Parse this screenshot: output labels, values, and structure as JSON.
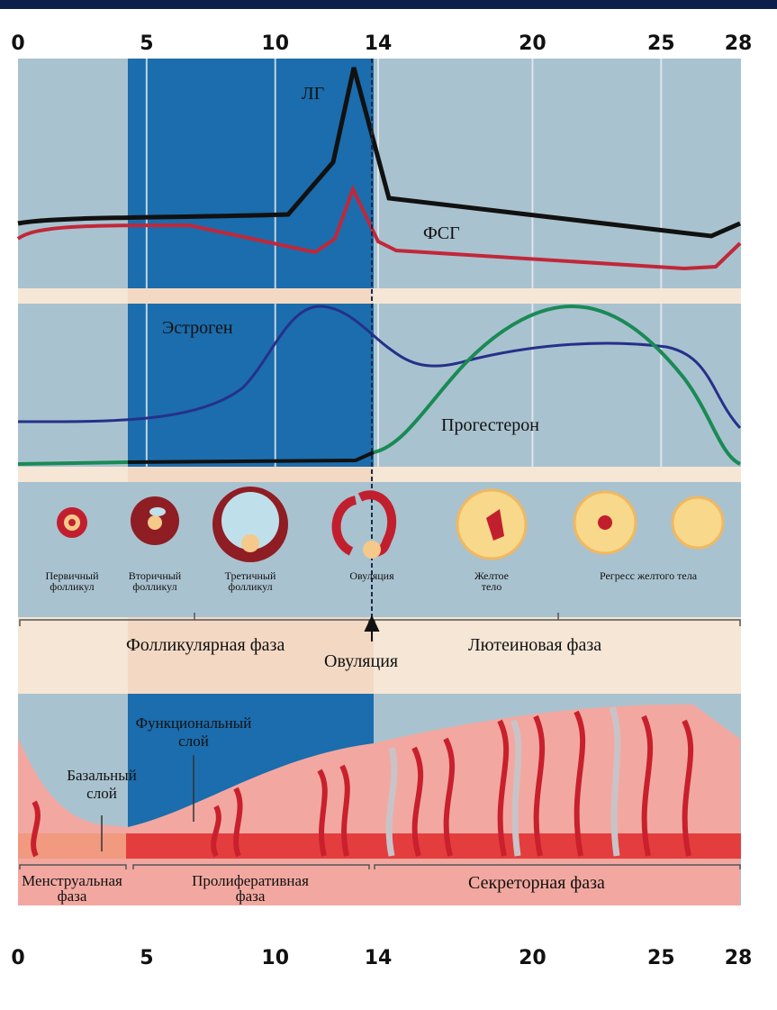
{
  "days": [
    0,
    5,
    10,
    14,
    20,
    25,
    28
  ],
  "pituitary_hormones": {
    "lh": "ЛГ",
    "fsh": "ФСГ"
  },
  "ovarian_hormones": {
    "estrogen": "Эстроген",
    "progesterone": "Прогестерон"
  },
  "follicles": [
    {
      "lines": [
        "Первичный",
        "фолликул"
      ]
    },
    {
      "lines": [
        "Вторичный",
        "фолликул"
      ]
    },
    {
      "lines": [
        "Третичный",
        "фолликул"
      ]
    },
    {
      "lines": [
        "Овуляция"
      ]
    },
    {
      "lines": [
        "Желтое",
        "тело"
      ]
    },
    {
      "lines": [
        "Регресс желтого тела"
      ]
    }
  ],
  "ovarian_phases": {
    "follicular": "Фолликулярная фаза",
    "ovulation": "Овуляция",
    "luteal": "Лютеиновая фаза"
  },
  "endometrium": {
    "functional_layer": [
      "Функциональный",
      "слой"
    ],
    "basal_layer": [
      "Базальный",
      "слой"
    ]
  },
  "uterine_phases": {
    "menstrual": [
      "Менструальная",
      "фаза"
    ],
    "proliferative": [
      "Пролиферативная",
      "фаза"
    ],
    "secretory": "Секреторная фаза"
  }
}
